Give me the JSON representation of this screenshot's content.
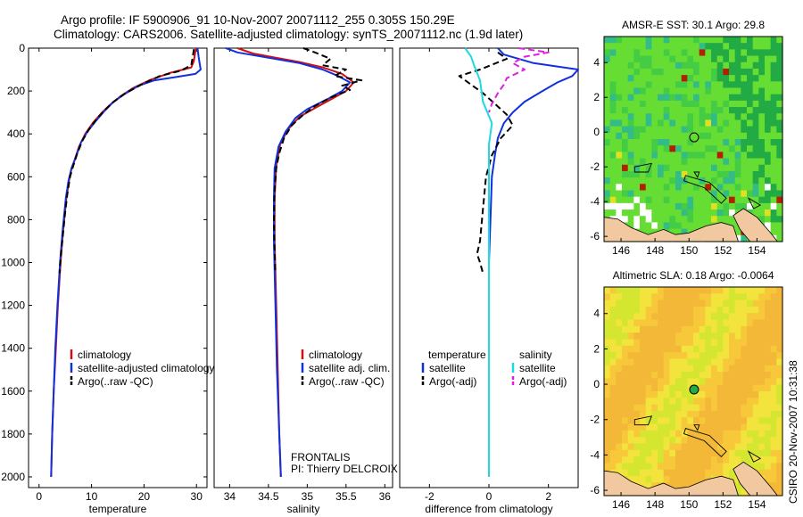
{
  "title": {
    "line1": "Argo profile: IF 5900906_91 10-Nov-2007 20071112_255 0.305S 150.29E",
    "line2": "Climatology: CARS2006. Satellite-adjusted climatology: synTS_20071112.nc (1.9d later)"
  },
  "side_label": "CSIRO 20-Nov-2007 10:31:38",
  "chart_data": [
    {
      "id": "temperature",
      "type": "line",
      "xlabel": "temperature",
      "ylabel": "",
      "xlim": [
        -2,
        32
      ],
      "ylim": [
        2050,
        0
      ],
      "xticks": [
        0,
        10,
        20,
        30
      ],
      "yticks": [
        0,
        200,
        400,
        600,
        800,
        1000,
        1200,
        1400,
        1600,
        1800,
        2000
      ],
      "legend": [
        "climatology",
        "satellite-adjusted climatology",
        "Argo(..raw -QC)"
      ],
      "series": [
        {
          "name": "climatology",
          "color": "#d01010",
          "style": "solid",
          "points": [
            [
              29.9,
              0
            ],
            [
              29.5,
              60
            ],
            [
              29.0,
              90
            ],
            [
              27.5,
              100
            ],
            [
              25,
              115
            ],
            [
              21,
              150
            ],
            [
              18,
              185
            ],
            [
              15.5,
              225
            ],
            [
              13.5,
              265
            ],
            [
              12,
              300
            ],
            [
              10.2,
              350
            ],
            [
              8.8,
              400
            ],
            [
              7.6,
              460
            ],
            [
              6.8,
              520
            ],
            [
              6.2,
              560
            ],
            [
              5.7,
              620
            ],
            [
              5.2,
              700
            ],
            [
              4.6,
              850
            ],
            [
              4.1,
              1000
            ],
            [
              3.6,
              1200
            ],
            [
              3.2,
              1400
            ],
            [
              2.8,
              1600
            ],
            [
              2.5,
              1800
            ],
            [
              2.3,
              2000
            ]
          ]
        },
        {
          "name": "satellite-adjusted climatology",
          "color": "#1030e0",
          "style": "solid",
          "points": [
            [
              30.2,
              0
            ],
            [
              30.4,
              40
            ],
            [
              30.8,
              100
            ],
            [
              29.8,
              120
            ],
            [
              26,
              135
            ],
            [
              22,
              150
            ],
            [
              19,
              175
            ],
            [
              16.2,
              215
            ],
            [
              14,
              255
            ],
            [
              12.4,
              295
            ],
            [
              10.8,
              340
            ],
            [
              9.2,
              390
            ],
            [
              8,
              440
            ],
            [
              7,
              510
            ],
            [
              6.2,
              560
            ],
            [
              5.6,
              620
            ],
            [
              5.1,
              700
            ],
            [
              4.5,
              850
            ],
            [
              4.0,
              1000
            ],
            [
              3.5,
              1200
            ],
            [
              3.1,
              1400
            ],
            [
              2.8,
              1600
            ],
            [
              2.5,
              1800
            ],
            [
              2.3,
              2000
            ]
          ]
        },
        {
          "name": "Argo(..raw -QC)",
          "color": "#000000",
          "style": "dashed",
          "points": [
            [
              29.5,
              5
            ],
            [
              29.3,
              40
            ],
            [
              29.0,
              80
            ],
            [
              27,
              105
            ],
            [
              23,
              130
            ],
            [
              19.5,
              170
            ],
            [
              16.5,
              210
            ],
            [
              14.2,
              250
            ],
            [
              12.5,
              290
            ],
            [
              11,
              330
            ],
            [
              9.5,
              380
            ],
            [
              8.3,
              430
            ],
            [
              7.3,
              490
            ],
            [
              6.5,
              550
            ],
            [
              5.9,
              600
            ],
            [
              5.4,
              680
            ],
            [
              5.0,
              760
            ],
            [
              4.6,
              860
            ],
            [
              4.2,
              950
            ],
            [
              3.9,
              1050
            ]
          ]
        }
      ]
    },
    {
      "id": "salinity",
      "type": "line",
      "xlabel": "salinity",
      "ylabel": "",
      "xlim": [
        33.8,
        36.1
      ],
      "ylim": [
        2050,
        0
      ],
      "xticks": [
        34,
        34.5,
        35,
        35.5,
        36
      ],
      "yticks": [],
      "legend": [
        "climatology",
        "satellite adj. clim.",
        "Argo(..raw -QC)"
      ],
      "annotation": [
        "FRONTALIS",
        "PI: Thierry DELCROIX"
      ],
      "series": [
        {
          "name": "climatology",
          "color": "#d01010",
          "style": "solid",
          "points": [
            [
              34.1,
              0
            ],
            [
              34.3,
              25
            ],
            [
              34.6,
              45
            ],
            [
              34.9,
              65
            ],
            [
              35.2,
              90
            ],
            [
              35.45,
              120
            ],
            [
              35.6,
              160
            ],
            [
              35.5,
              200
            ],
            [
              35.3,
              240
            ],
            [
              35.1,
              280
            ],
            [
              34.9,
              320
            ],
            [
              34.75,
              380
            ],
            [
              34.65,
              450
            ],
            [
              34.6,
              550
            ],
            [
              34.58,
              700
            ],
            [
              34.58,
              900
            ],
            [
              34.6,
              1200
            ],
            [
              34.62,
              1500
            ],
            [
              34.64,
              1800
            ],
            [
              34.66,
              2000
            ]
          ]
        },
        {
          "name": "satellite adj. clim.",
          "color": "#1030e0",
          "style": "solid",
          "points": [
            [
              33.95,
              0
            ],
            [
              34.1,
              20
            ],
            [
              34.5,
              45
            ],
            [
              34.9,
              70
            ],
            [
              35.2,
              100
            ],
            [
              35.4,
              130
            ],
            [
              35.55,
              160
            ],
            [
              35.45,
              200
            ],
            [
              35.25,
              240
            ],
            [
              35.0,
              285
            ],
            [
              34.85,
              325
            ],
            [
              34.72,
              390
            ],
            [
              34.63,
              460
            ],
            [
              34.58,
              560
            ],
            [
              34.57,
              700
            ],
            [
              34.57,
              900
            ],
            [
              34.59,
              1200
            ],
            [
              34.61,
              1500
            ],
            [
              34.64,
              1800
            ],
            [
              34.66,
              2000
            ]
          ]
        },
        {
          "name": "Argo(..raw -QC)",
          "color": "#000000",
          "style": "dashed",
          "points": [
            [
              34.95,
              0
            ],
            [
              35.1,
              20
            ],
            [
              35.3,
              50
            ],
            [
              35.2,
              80
            ],
            [
              35.5,
              100
            ],
            [
              35.35,
              130
            ],
            [
              35.7,
              150
            ],
            [
              35.45,
              175
            ],
            [
              35.55,
              195
            ],
            [
              35.3,
              230
            ],
            [
              35.1,
              270
            ],
            [
              34.95,
              310
            ],
            [
              34.8,
              360
            ],
            [
              34.7,
              420
            ],
            [
              34.64,
              490
            ],
            [
              34.6,
              560
            ],
            [
              34.58,
              660
            ],
            [
              34.57,
              800
            ],
            [
              34.58,
              950
            ],
            [
              34.59,
              1050
            ]
          ]
        }
      ]
    },
    {
      "id": "difference",
      "type": "line",
      "xlabel": "difference from climatology",
      "ylabel": "",
      "xlim": [
        -3,
        3
      ],
      "ylim": [
        2050,
        0
      ],
      "xticks": [
        -2,
        0,
        2
      ],
      "yticks": [],
      "legend_left": [
        "temperature",
        "satellite",
        "Argo(-adj)"
      ],
      "legend_right": [
        "salinity",
        "satellite",
        "Argo(-adj)"
      ],
      "series": [
        {
          "name": "temperature satellite",
          "color": "#1030e0",
          "style": "solid",
          "points": [
            [
              0.3,
              0
            ],
            [
              0.5,
              30
            ],
            [
              1.5,
              70
            ],
            [
              3.0,
              100
            ],
            [
              2.8,
              130
            ],
            [
              2.3,
              160
            ],
            [
              1.8,
              200
            ],
            [
              1.2,
              250
            ],
            [
              0.8,
              300
            ],
            [
              0.5,
              350
            ],
            [
              0.3,
              420
            ],
            [
              0.2,
              500
            ],
            [
              0.1,
              600
            ],
            [
              0.05,
              800
            ],
            [
              0.0,
              1000
            ],
            [
              0.0,
              2000
            ]
          ]
        },
        {
          "name": "temperature Argo(-adj)",
          "color": "#000000",
          "style": "dashed",
          "points": [
            [
              0.3,
              20
            ],
            [
              0.6,
              50
            ],
            [
              -0.3,
              100
            ],
            [
              -1.0,
              130
            ],
            [
              -0.6,
              170
            ],
            [
              -0.2,
              210
            ],
            [
              0.2,
              260
            ],
            [
              0.6,
              310
            ],
            [
              0.8,
              360
            ],
            [
              0.4,
              420
            ],
            [
              0.1,
              500
            ],
            [
              -0.1,
              600
            ],
            [
              -0.2,
              750
            ],
            [
              -0.3,
              900
            ],
            [
              -0.4,
              960
            ],
            [
              -0.3,
              1000
            ],
            [
              -0.2,
              1050
            ]
          ]
        },
        {
          "name": "salinity satellite",
          "color": "#20d8e0",
          "style": "solid",
          "points": [
            [
              -0.8,
              0
            ],
            [
              -0.6,
              40
            ],
            [
              -0.5,
              80
            ],
            [
              -0.3,
              150
            ],
            [
              -0.2,
              250
            ],
            [
              0.1,
              350
            ],
            [
              0.0,
              450
            ],
            [
              0.0,
              700
            ],
            [
              0.0,
              1000
            ],
            [
              0.0,
              2000
            ]
          ]
        },
        {
          "name": "salinity Argo(-adj)",
          "color": "#e020e0",
          "style": "dashed",
          "points": [
            [
              1.0,
              0
            ],
            [
              2.0,
              20
            ],
            [
              1.2,
              40
            ],
            [
              0.8,
              70
            ],
            [
              1.2,
              100
            ],
            [
              0.6,
              140
            ],
            [
              0.5,
              170
            ],
            [
              0.3,
              210
            ],
            [
              0.1,
              260
            ],
            [
              0.0,
              300
            ]
          ]
        }
      ]
    },
    {
      "id": "sst_map",
      "type": "heatmap",
      "title": "AMSR-E SST: 30.1  Argo: 29.8",
      "xlim": [
        145,
        155.5
      ],
      "ylim": [
        -6.3,
        5.5
      ],
      "xticks": [
        146,
        148,
        150,
        152,
        154
      ],
      "yticks": [
        -6,
        -4,
        -2,
        0,
        2,
        4
      ],
      "marker": [
        150.3,
        -0.3
      ]
    },
    {
      "id": "sla_map",
      "type": "heatmap",
      "title": "Altimetric SLA: 0.18  Argo: -0.0064",
      "xlim": [
        145,
        155.5
      ],
      "ylim": [
        -6.3,
        5.5
      ],
      "xticks": [
        146,
        148,
        150,
        152,
        154
      ],
      "yticks": [
        -6,
        -4,
        -2,
        0,
        2,
        4
      ],
      "marker": [
        150.3,
        -0.3
      ]
    }
  ]
}
